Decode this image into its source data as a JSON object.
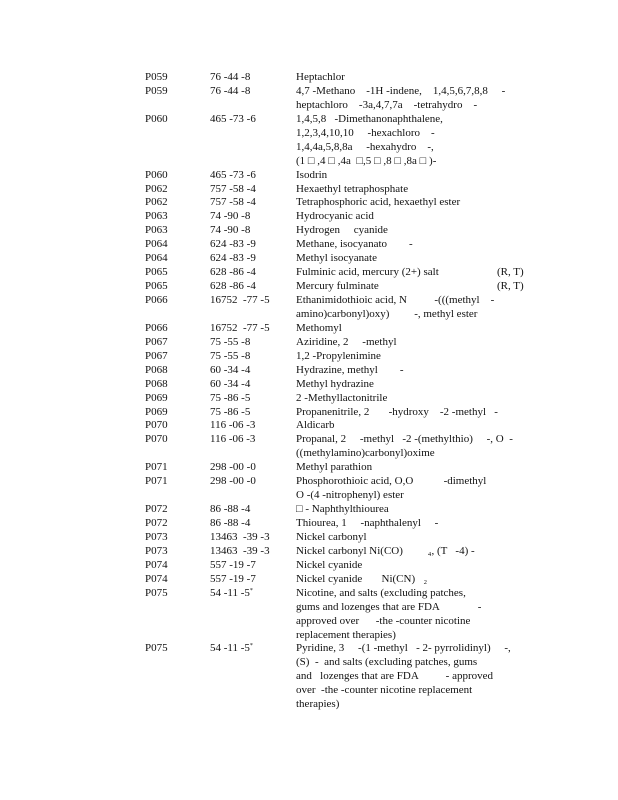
{
  "rows": [
    {
      "code": "P059",
      "cas": "76 -44 -8",
      "name": [
        "Heptachlor"
      ]
    },
    {
      "code": "P059",
      "cas": "76 -44 -8",
      "name": [
        "4,7 -Methano    -1H -indene,    1,4,5,6,7,8,8     -",
        "heptachloro    -3a,4,7,7a    -tetrahydro    -"
      ]
    },
    {
      "code": "P060",
      "cas": "465 -73 -6",
      "name": [
        "1,4,5,8   -Dimethanonaphthalene,",
        "1,2,3,4,10,10     -hexachloro    -",
        "1,4,4a,5,8,8a     -hexahydro    -,",
        "(1 □ ,4 □ ,4a  □,5 □ ,8 □ ,8a □ )-"
      ]
    },
    {
      "code": "P060",
      "cas": "465 -73 -6",
      "name": [
        "Isodrin"
      ]
    },
    {
      "code": "P062",
      "cas": "757 -58 -4",
      "name": [
        "Hexaethyl tetraphosphate"
      ]
    },
    {
      "code": "P062",
      "cas": "757 -58 -4",
      "name": [
        "Tetraphosphoric acid, hexaethyl ester"
      ]
    },
    {
      "code": "P063",
      "cas": "74 -90 -8",
      "name": [
        "Hydrocyanic acid"
      ]
    },
    {
      "code": "P063",
      "cas": "74 -90 -8",
      "name": [
        "Hydrogen     cyanide"
      ]
    },
    {
      "code": "P064",
      "cas": "624 -83 -9",
      "name": [
        "Methane, isocyanato        -"
      ]
    },
    {
      "code": "P064",
      "cas": "624 -83 -9",
      "name": [
        "Methyl isocyanate"
      ]
    },
    {
      "code": "P065",
      "cas": "628 -86 -4",
      "name": [
        "Fulminic acid, mercury (2+) salt"
      ],
      "note": "(R, T)"
    },
    {
      "code": "P065",
      "cas": "628 -86 -4",
      "name": [
        "Mercury fulminate"
      ],
      "note": "(R, T)"
    },
    {
      "code": "P066",
      "cas": "16752  -77 -5",
      "name": [
        "Ethanimidothioic acid, N          -(((methyl    -",
        "amino)carbonyl)oxy)         -, methyl ester"
      ]
    },
    {
      "code": "P066",
      "cas": "16752  -77 -5",
      "name": [
        "Methomyl"
      ]
    },
    {
      "code": "P067",
      "cas": "75 -55 -8",
      "name": [
        "Aziridine, 2     -methyl"
      ]
    },
    {
      "code": "P067",
      "cas": "75 -55 -8",
      "name": [
        "1,2 -Propylenimine"
      ]
    },
    {
      "code": "P068",
      "cas": "60 -34 -4",
      "name": [
        "Hydrazine, methyl        -"
      ]
    },
    {
      "code": "P068",
      "cas": "60 -34 -4",
      "name": [
        "Methyl hydrazine"
      ]
    },
    {
      "code": "P069",
      "cas": "75 -86 -5",
      "name": [
        "2 -Methyllactonitrile"
      ]
    },
    {
      "code": "P069",
      "cas": "75 -86 -5",
      "name": [
        "Propanenitrile, 2       -hydroxy    -2 -methyl   -"
      ]
    },
    {
      "code": "P070",
      "cas": "116 -06 -3",
      "name": [
        "Aldicarb"
      ]
    },
    {
      "code": "P070",
      "cas": "116 -06 -3",
      "name": [
        "Propanal, 2     -methyl   -2 -(methylthio)     -, O  -",
        "((methylamino)carbonyl)oxime"
      ]
    },
    {
      "code": "P071",
      "cas": "298 -00 -0",
      "name": [
        "Methyl parathion"
      ]
    },
    {
      "code": "P071",
      "cas": "298 -00 -0",
      "name": [
        "Phosphorothioic acid, O,O           -dimethyl",
        "O -(4 -nitrophenyl) ester"
      ]
    },
    {
      "code": "P072",
      "cas": "86 -88 -4",
      "name": [
        "□ - Naphthylthiourea"
      ]
    },
    {
      "code": "P072",
      "cas": "86 -88 -4",
      "name": [
        "Thiourea, 1     -naphthalenyl     -"
      ]
    },
    {
      "code": "P073",
      "cas": "13463  -39 -3",
      "name": [
        "Nickel carbonyl"
      ]
    },
    {
      "code": "P073",
      "cas": "13463  -39 -3",
      "name": [
        "Nickel carbonyl Ni(CO)         ₄, (T   -4) -"
      ]
    },
    {
      "code": "P074",
      "cas": "557 -19 -7",
      "name": [
        "Nickel cyanide"
      ]
    },
    {
      "code": "P074",
      "cas": "557 -19 -7",
      "name": [
        "Nickel cyanide       Ni(CN)   ₂"
      ]
    },
    {
      "code": "P075",
      "cas": "54 -11 -5",
      "cas_mark": "*",
      "name": [
        "Nicotine, and salts (excluding patches,",
        "gums and lozenges that are FDA              -",
        "approved over      -the -counter nicotine",
        "replacement therapies)"
      ]
    },
    {
      "code": "P075",
      "cas": "54 -11 -5",
      "cas_mark": "*",
      "name": [
        "Pyridine, 3     -(1 -methyl   - 2- pyrrolidinyl)     -,",
        "(S)  -  and salts (excluding patches, gums",
        "and   lozenges that are FDA          - approved",
        "over  -the -counter nicotine replacement",
        "therapies)"
      ]
    }
  ]
}
